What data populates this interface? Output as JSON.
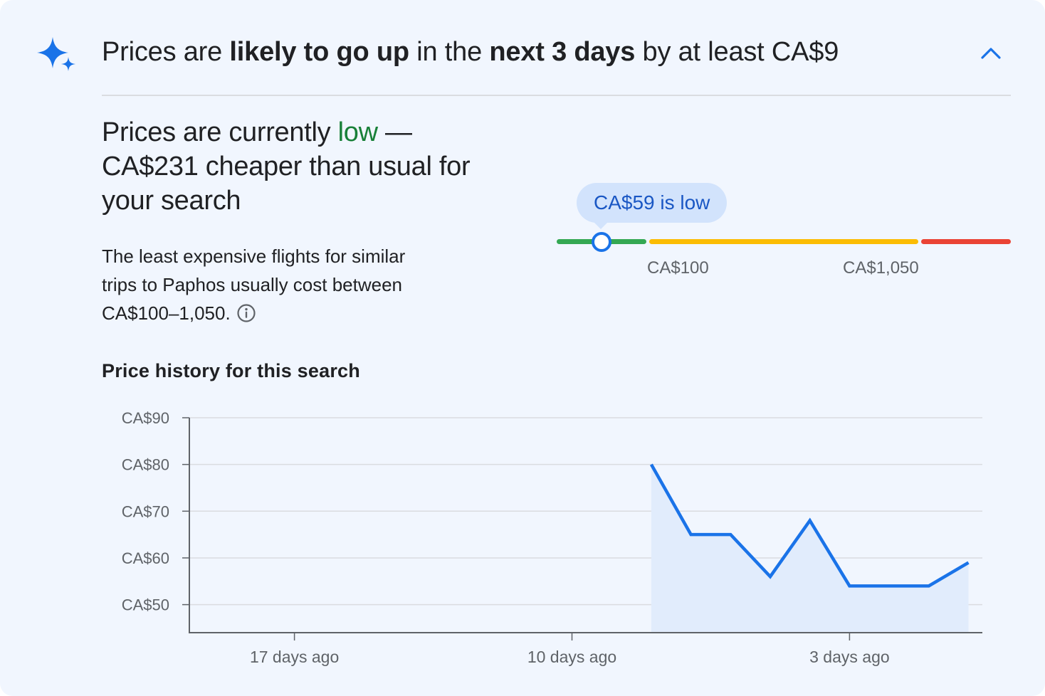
{
  "insight": {
    "headline_parts": [
      {
        "text": "Prices are ",
        "bold": false
      },
      {
        "text": "likely to go up",
        "bold": true
      },
      {
        "text": " in the ",
        "bold": false
      },
      {
        "text": "next 3 days",
        "bold": true
      },
      {
        "text": " by at least CA$9",
        "bold": false
      }
    ],
    "icon": "sparkle-icon",
    "collapse_icon": "chevron-up-icon"
  },
  "status": {
    "prefix": "Prices are currently ",
    "level": "low",
    "suffix": " — CA$231 cheaper than usual for your search"
  },
  "description": "The least expensive flights for similar trips to Paphos usually cost between CA$100–1,050.",
  "price_range": {
    "tooltip": "CA$59 is low",
    "low_label": "CA$100",
    "high_label": "CA$1,050",
    "current_price": 59,
    "colors": {
      "low": "#34a853",
      "typical": "#fbbc04",
      "high": "#ea4335"
    }
  },
  "history_title": "Price history for this search",
  "chart_data": {
    "type": "area",
    "x_unit": "days ago",
    "x_ticks": [
      {
        "value": 17,
        "label": "17 days ago"
      },
      {
        "value": 10,
        "label": "10 days ago"
      },
      {
        "value": 3,
        "label": "3 days ago"
      }
    ],
    "y_ticks": [
      {
        "value": 90,
        "label": "CA$90"
      },
      {
        "value": 80,
        "label": "CA$80"
      },
      {
        "value": 70,
        "label": "CA$70"
      },
      {
        "value": 60,
        "label": "CA$60"
      },
      {
        "value": 50,
        "label": "CA$50"
      }
    ],
    "xlim": [
      19.65,
      -0.35
    ],
    "ylim": [
      44,
      90
    ],
    "grid": true,
    "series": [
      {
        "color": "#1a73e8",
        "x": [
          8,
          7,
          6,
          5,
          4,
          3,
          2,
          1,
          0
        ],
        "y": [
          80,
          65,
          65,
          56,
          68,
          54,
          54,
          54,
          59
        ]
      }
    ]
  }
}
